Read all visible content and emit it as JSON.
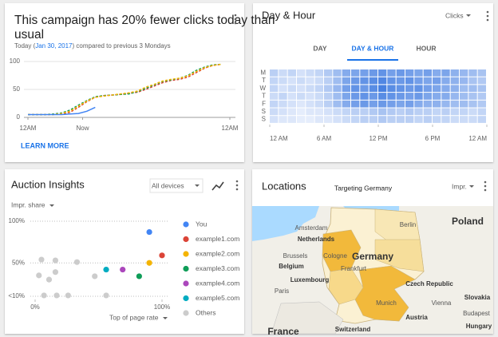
{
  "campaign": {
    "title_lines": [
      "This campaign has 20% fewer clicks today than",
      "usual"
    ],
    "subtitle": [
      "Today (",
      "Jan 30, 2017",
      ") compared to previous 3 Mondays"
    ],
    "link": "LEARN MORE",
    "chart": {
      "type": "line",
      "x": [
        0,
        1,
        2,
        3,
        4,
        5,
        6,
        7,
        8,
        9,
        10,
        11,
        12,
        13,
        14,
        15,
        16,
        17,
        18,
        19,
        20,
        21,
        22,
        23
      ],
      "xlim": [
        0,
        24
      ],
      "xticks": [
        {
          "value": 0,
          "label": "12AM"
        },
        {
          "value": 6.5,
          "label": "Now"
        },
        {
          "value": 24,
          "label": "12AM"
        }
      ],
      "ylim": [
        0,
        100
      ],
      "yticks": [
        0,
        50,
        100
      ],
      "grid": true,
      "series": [
        {
          "color": "#db4437",
          "dashed": true,
          "values": [
            5,
            5,
            5,
            5,
            6,
            9,
            18,
            28,
            36,
            39,
            40,
            41,
            43,
            45,
            50,
            56,
            62,
            66,
            68,
            72,
            80,
            88,
            93,
            95
          ]
        },
        {
          "color": "#0f9d58",
          "dashed": true,
          "values": [
            5,
            5,
            5,
            6,
            8,
            13,
            22,
            30,
            37,
            39,
            40,
            41,
            42,
            46,
            52,
            58,
            64,
            67,
            70,
            75,
            84,
            90,
            94,
            95
          ]
        },
        {
          "color": "#f4b400",
          "dashed": true,
          "values": [
            5,
            5,
            5,
            5,
            7,
            11,
            20,
            29,
            36,
            38,
            40,
            42,
            44,
            47,
            54,
            59,
            65,
            68,
            70,
            74,
            82,
            89,
            93,
            95
          ]
        },
        {
          "color": "#4285f4",
          "dashed": false,
          "values": [
            5,
            5,
            5,
            5,
            5,
            6,
            7,
            11,
            18,
            null,
            null,
            null,
            null,
            null,
            null,
            null,
            null,
            null,
            null,
            null,
            null,
            null,
            null,
            null
          ]
        }
      ]
    }
  },
  "dayhour": {
    "title": "Day & Hour",
    "metric": "Clicks",
    "tabs": [
      "DAY",
      "DAY & HOUR",
      "HOUR"
    ],
    "active_tab": 1,
    "chart": {
      "type": "heatmap",
      "rows": [
        "M",
        "T",
        "W",
        "T",
        "F",
        "S",
        "S"
      ],
      "xlim": [
        0,
        24
      ],
      "xticks": [
        {
          "value": 0,
          "label": "12 AM"
        },
        {
          "value": 6,
          "label": "6 AM"
        },
        {
          "value": 12,
          "label": "12 PM"
        },
        {
          "value": 18,
          "label": "6 PM"
        },
        {
          "value": 24,
          "label": "12 AM"
        }
      ],
      "vlim": [
        0,
        100
      ],
      "color_low": "#eef3fd",
      "color_high": "#3f7be0",
      "values": [
        [
          30,
          20,
          25,
          15,
          20,
          25,
          35,
          45,
          60,
          65,
          70,
          75,
          80,
          70,
          75,
          70,
          65,
          70,
          60,
          65,
          55,
          50,
          45,
          40
        ],
        [
          25,
          20,
          15,
          20,
          15,
          20,
          30,
          45,
          65,
          75,
          80,
          85,
          90,
          80,
          75,
          80,
          70,
          65,
          70,
          60,
          55,
          50,
          40,
          35
        ],
        [
          25,
          15,
          20,
          15,
          20,
          25,
          35,
          50,
          70,
          80,
          75,
          85,
          95,
          85,
          80,
          75,
          80,
          70,
          65,
          60,
          55,
          45,
          45,
          40
        ],
        [
          20,
          25,
          15,
          20,
          15,
          20,
          30,
          45,
          65,
          75,
          80,
          75,
          85,
          80,
          75,
          70,
          75,
          65,
          60,
          60,
          50,
          45,
          40,
          35
        ],
        [
          25,
          20,
          15,
          10,
          15,
          20,
          30,
          45,
          60,
          70,
          75,
          70,
          75,
          70,
          65,
          70,
          60,
          55,
          55,
          50,
          45,
          45,
          40,
          35
        ],
        [
          20,
          15,
          10,
          5,
          10,
          10,
          15,
          20,
          25,
          30,
          30,
          35,
          40,
          35,
          30,
          35,
          30,
          30,
          25,
          30,
          25,
          25,
          20,
          25
        ],
        [
          15,
          10,
          10,
          5,
          5,
          10,
          10,
          15,
          20,
          25,
          30,
          30,
          35,
          30,
          30,
          30,
          25,
          30,
          25,
          25,
          20,
          20,
          20,
          25
        ]
      ]
    }
  },
  "auction": {
    "title": "Auction Insights",
    "device": "All devices",
    "metric": "Impr. share",
    "x_metric": "Top of page rate",
    "chart": {
      "type": "scatter",
      "xlim": [
        0,
        100
      ],
      "xticks": [
        {
          "value": 0,
          "label": "0%"
        },
        {
          "value": 100,
          "label": "100%"
        }
      ],
      "ylim": [
        10,
        100
      ],
      "yticks": [
        {
          "value": 100,
          "label": "100%"
        },
        {
          "value": 50,
          "label": "50%"
        },
        {
          "value": 10,
          "label": "<10%"
        }
      ],
      "series": [
        {
          "name": "You",
          "color": "#4285f4",
          "x": [
            90
          ],
          "values": [
            87
          ]
        },
        {
          "name": "example1.com",
          "color": "#db4437",
          "x": [
            100
          ],
          "values": [
            59
          ]
        },
        {
          "name": "example2.com",
          "color": "#f4b400",
          "x": [
            90
          ],
          "values": [
            50
          ]
        },
        {
          "name": "example3.com",
          "color": "#0f9d58",
          "x": [
            82
          ],
          "values": [
            34
          ]
        },
        {
          "name": "example4.com",
          "color": "#ab47bc",
          "x": [
            69
          ],
          "values": [
            42
          ]
        },
        {
          "name": "example5.com",
          "color": "#00acc1",
          "x": [
            56
          ],
          "values": [
            42
          ]
        },
        {
          "name": "Others",
          "color": "#cccccc",
          "x": [
            5,
            16,
            33,
            3,
            11,
            16,
            47,
            7,
            17,
            26,
            56
          ],
          "values": [
            54,
            53,
            51,
            35,
            30,
            39,
            34,
            11,
            11,
            11,
            11
          ]
        }
      ]
    }
  },
  "locations": {
    "title": "Locations",
    "subtitle": "Targeting Germany",
    "metric": "Impr.",
    "labels": [
      "Poland",
      "Amsterdam",
      "Netherlands",
      "Berlin",
      "Germany",
      "Cologne",
      "Brussels",
      "Belgium",
      "Frankfurt",
      "Luxembourg",
      "Czech Republic",
      "Paris",
      "Munich",
      "Vienna",
      "Slovakia",
      "Austria",
      "Budapest",
      "Hungary",
      "Switzerland",
      "France"
    ]
  }
}
